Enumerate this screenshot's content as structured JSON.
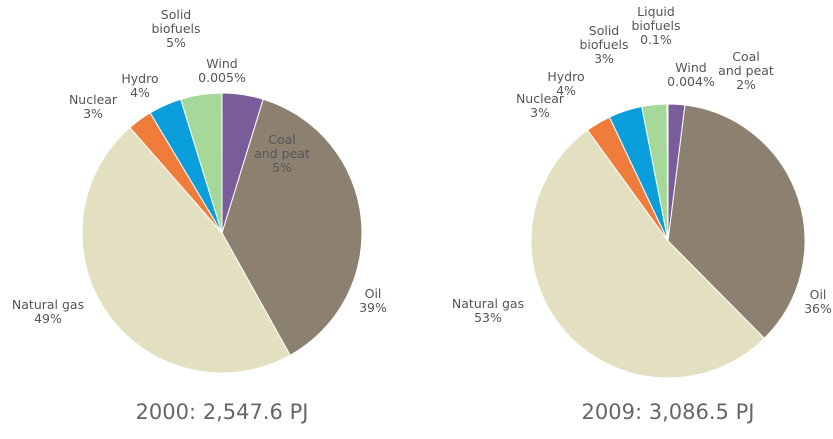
{
  "chart_data": [
    {
      "type": "pie",
      "title": "2000: 2,547.6 PJ",
      "categories": [
        "Coal\nand peat",
        "Oil",
        "Natural gas",
        "Nuclear",
        "Hydro",
        "Solid\nbiofuels",
        "Wind"
      ],
      "values": [
        5,
        39,
        49,
        3,
        4,
        5,
        0.005
      ],
      "value_labels": [
        "5%",
        "39%",
        "49%",
        "3%",
        "4%",
        "5%",
        "0.005%"
      ],
      "colors": [
        "#7b5c9a",
        "#8c8070",
        "#e3e0c1",
        "#f07c3c",
        "#0a9fdc",
        "#a6d89a",
        "#c8c8c8"
      ]
    },
    {
      "type": "pie",
      "title": "2009: 3,086.5 PJ",
      "categories": [
        "Coal\nand peat",
        "Oil",
        "Natural gas",
        "Nuclear",
        "Hydro",
        "Solid\nbiofuels",
        "Liquid\nbiofuels",
        "Wind"
      ],
      "values": [
        2,
        36,
        53,
        3,
        4,
        3,
        0.1,
        0.004
      ],
      "value_labels": [
        "2%",
        "36%",
        "53%",
        "3%",
        "4%",
        "3%",
        "0.1%",
        "0.004%"
      ],
      "colors": [
        "#7b5c9a",
        "#8c8070",
        "#e3e0c1",
        "#f07c3c",
        "#0a9fdc",
        "#a6d89a",
        "#e6dc78",
        "#c8c8c8"
      ]
    }
  ]
}
